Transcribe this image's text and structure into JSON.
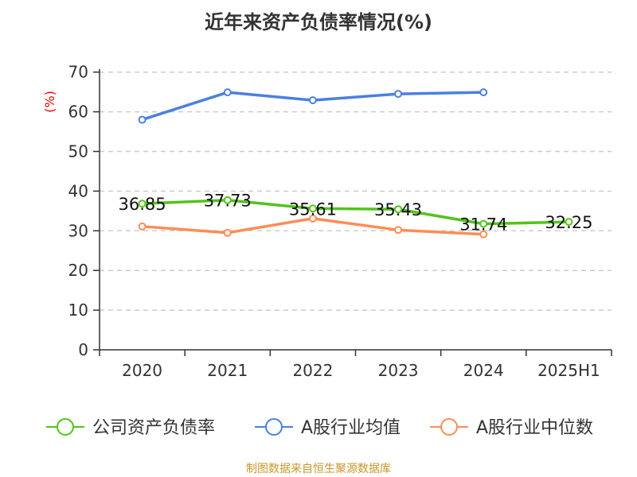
{
  "chart_data": {
    "type": "line",
    "title": "近年来资产负债率情况(%)",
    "ylabel": "(%)",
    "categories": [
      "2020",
      "2021",
      "2022",
      "2023",
      "2024",
      "2025H1"
    ],
    "ylim": [
      0,
      70
    ],
    "yticks": [
      0,
      10,
      20,
      30,
      40,
      50,
      60,
      70
    ],
    "grid": true,
    "legend_position": "bottom",
    "series": [
      {
        "name": "公司资产负债率",
        "color": "#52c41a",
        "values": [
          36.85,
          37.73,
          35.61,
          35.43,
          31.74,
          32.25
        ],
        "labels": [
          "36.85",
          "37.73",
          "35.61",
          "35.43",
          "31.74",
          "32.25"
        ]
      },
      {
        "name": "A股行业均值",
        "color": "#4a80e0",
        "values": [
          58.0,
          64.9,
          62.9,
          64.5,
          64.9,
          null
        ]
      },
      {
        "name": "A股行业中位数",
        "color": "#ff8c55",
        "values": [
          31.1,
          29.5,
          33.1,
          30.2,
          29.1,
          null
        ]
      }
    ]
  },
  "source": "制图数据来自恒生聚源数据库"
}
